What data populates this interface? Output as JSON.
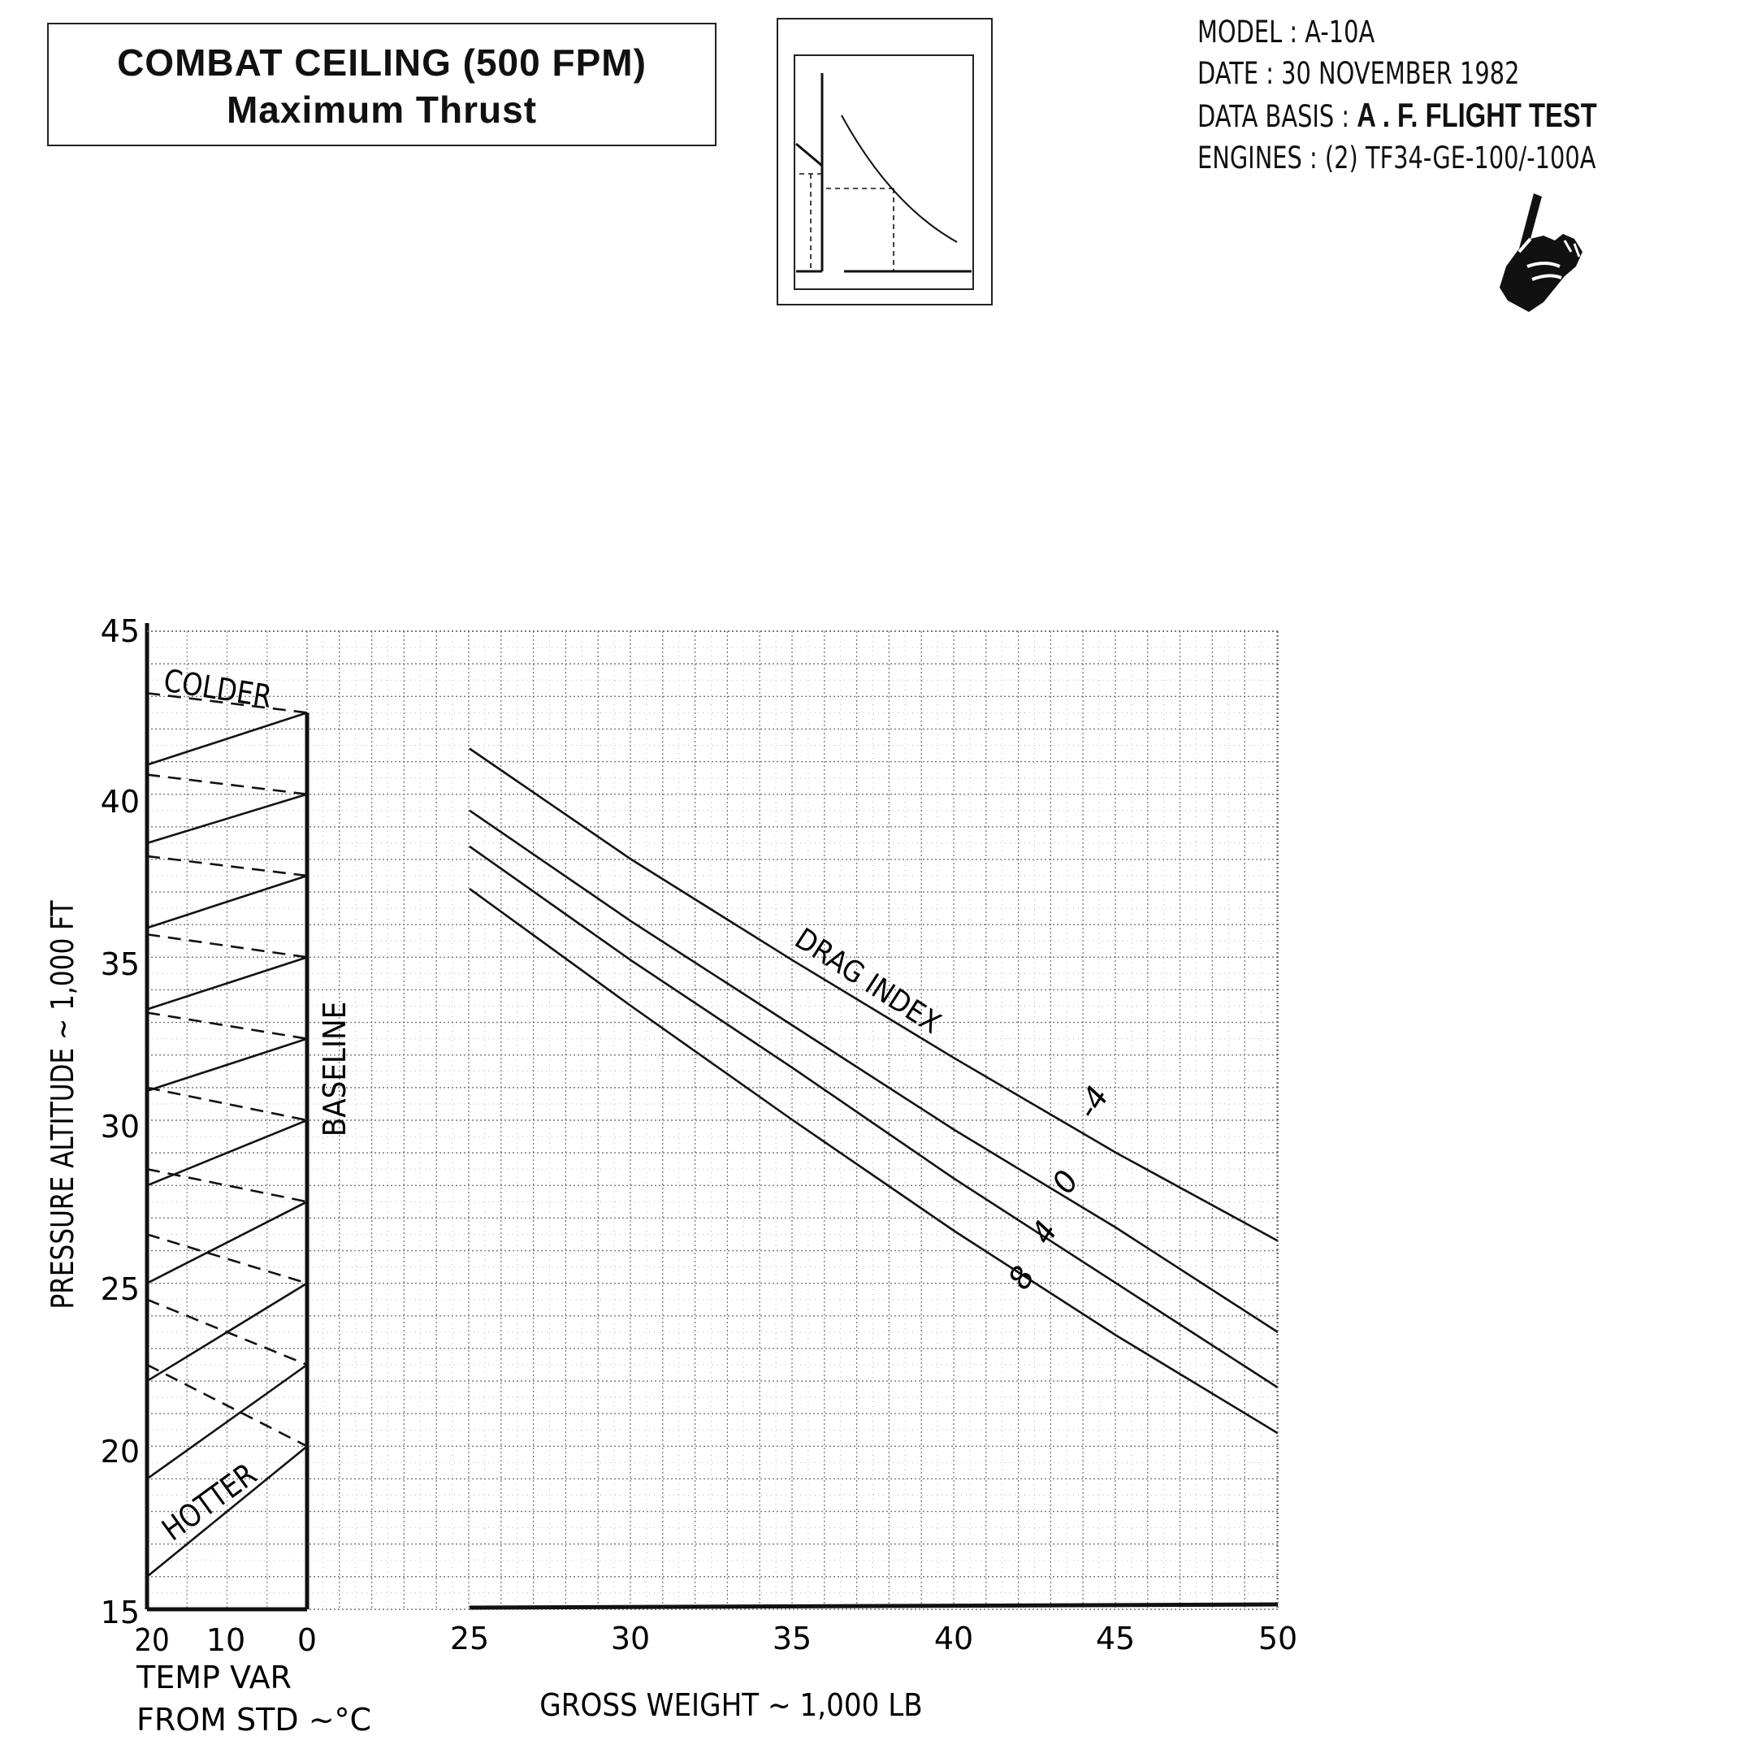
{
  "header": {
    "title_line1": "COMBAT CEILING  (500 FPM)",
    "title_line2": "Maximum Thrust"
  },
  "info": {
    "model_label": "MODEL : ",
    "model_value": "A-10A",
    "date_label": "DATE : ",
    "date_value": "30 NOVEMBER 1982",
    "basis_label": "DATA BASIS : ",
    "basis_value": "A . F.  FLIGHT TEST",
    "engines_label": "ENGINES : ",
    "engines_value": "(2) TF34-GE-100/-100A"
  },
  "icons": {
    "example_thumbnail": "chart-usage-diagram-icon",
    "pointer": "pointing-hand-icon"
  },
  "chart_data": [
    {
      "type": "line",
      "panel": "temperature-correction",
      "ylabel": "PRESSURE ALTITUDE ~ 1,000 FT",
      "xlabel_line1": "TEMP VAR",
      "xlabel_line2": "FROM STD ~°C",
      "x_ticks": [
        "20",
        "10",
        "0"
      ],
      "xlim": [
        20,
        0
      ],
      "y_ticks": [
        "15",
        "20",
        "25",
        "30",
        "35",
        "40",
        "45"
      ],
      "ylim": [
        15,
        45
      ],
      "labels": {
        "colder": "COLDER",
        "hotter": "HOTTER",
        "baseline": "BASELINE"
      },
      "hotter_lines": [
        {
          "x": [
            20,
            0
          ],
          "y": [
            16.0,
            20.0
          ]
        },
        {
          "x": [
            20,
            0
          ],
          "y": [
            19.0,
            22.5
          ]
        },
        {
          "x": [
            20,
            0
          ],
          "y": [
            22.0,
            25.0
          ]
        },
        {
          "x": [
            20,
            0
          ],
          "y": [
            25.0,
            27.5
          ]
        },
        {
          "x": [
            20,
            0
          ],
          "y": [
            28.0,
            30.0
          ]
        },
        {
          "x": [
            20,
            0
          ],
          "y": [
            30.9,
            32.5
          ]
        },
        {
          "x": [
            20,
            0
          ],
          "y": [
            33.4,
            35.0
          ]
        },
        {
          "x": [
            20,
            0
          ],
          "y": [
            35.9,
            37.5
          ]
        },
        {
          "x": [
            20,
            0
          ],
          "y": [
            38.5,
            40.0
          ]
        },
        {
          "x": [
            20,
            0
          ],
          "y": [
            40.9,
            42.5
          ]
        }
      ],
      "colder_lines": [
        {
          "x": [
            20,
            0
          ],
          "y": [
            22.5,
            20.0
          ]
        },
        {
          "x": [
            20,
            0
          ],
          "y": [
            24.5,
            22.5
          ]
        },
        {
          "x": [
            20,
            0
          ],
          "y": [
            26.5,
            25.0
          ]
        },
        {
          "x": [
            20,
            0
          ],
          "y": [
            28.5,
            27.5
          ]
        },
        {
          "x": [
            20,
            0
          ],
          "y": [
            31.0,
            30.0
          ]
        },
        {
          "x": [
            20,
            0
          ],
          "y": [
            33.3,
            32.5
          ]
        },
        {
          "x": [
            20,
            0
          ],
          "y": [
            35.7,
            35.0
          ]
        },
        {
          "x": [
            20,
            0
          ],
          "y": [
            38.1,
            37.5
          ]
        },
        {
          "x": [
            20,
            0
          ],
          "y": [
            40.6,
            40.0
          ]
        },
        {
          "x": [
            20,
            0
          ],
          "y": [
            43.1,
            42.5
          ]
        }
      ]
    },
    {
      "type": "line",
      "panel": "gross-weight",
      "xlabel": "GROSS WEIGHT ~ 1,000 LB",
      "x_ticks": [
        "25",
        "30",
        "35",
        "40",
        "45",
        "50"
      ],
      "xlim": [
        25,
        50
      ],
      "ylim": [
        15,
        45
      ],
      "legend_title": "DRAG INDEX",
      "series": [
        {
          "name": "-4",
          "x": [
            25,
            30,
            35,
            40,
            45,
            50
          ],
          "y": [
            41.4,
            38.0,
            34.9,
            31.9,
            29.0,
            26.3
          ]
        },
        {
          "name": "0",
          "x": [
            25,
            30,
            35,
            40,
            45,
            50
          ],
          "y": [
            39.5,
            36.1,
            32.9,
            29.7,
            26.7,
            23.5
          ]
        },
        {
          "name": "4",
          "x": [
            25,
            30,
            35,
            40,
            45,
            50
          ],
          "y": [
            38.4,
            34.9,
            31.6,
            28.2,
            25.0,
            21.8
          ]
        },
        {
          "name": "8",
          "x": [
            25,
            30,
            35,
            40,
            45,
            50
          ],
          "y": [
            37.1,
            33.5,
            30.0,
            26.6,
            23.4,
            20.4
          ]
        }
      ]
    }
  ]
}
